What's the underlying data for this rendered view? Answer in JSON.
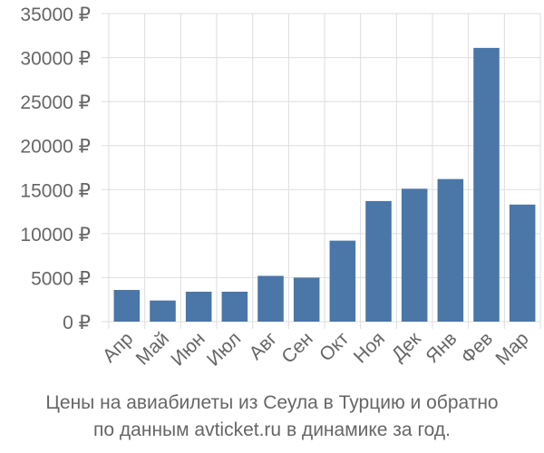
{
  "chart_data": {
    "type": "bar",
    "categories": [
      "Апр",
      "Май",
      "Июн",
      "Июл",
      "Авг",
      "Сен",
      "Окт",
      "Ноя",
      "Дек",
      "Янв",
      "Фев",
      "Мар"
    ],
    "values": [
      3600,
      2400,
      3400,
      3400,
      5200,
      5000,
      9200,
      13700,
      15100,
      16200,
      31100,
      13300
    ],
    "ylim": [
      0,
      35000
    ],
    "yticks": [
      0,
      5000,
      10000,
      15000,
      20000,
      25000,
      30000,
      35000
    ],
    "ytick_labels": [
      "0 ₽",
      "5000 ₽",
      "10000 ₽",
      "15000 ₽",
      "20000 ₽",
      "25000 ₽",
      "30000 ₽",
      "35000 ₽"
    ],
    "grid": true,
    "bar_color": "#4a76a8",
    "caption_line1": "Цены на авиабилеты из Сеула в Турцию и обратно",
    "caption_line2": "по данным avticket.ru в динамике за год."
  }
}
